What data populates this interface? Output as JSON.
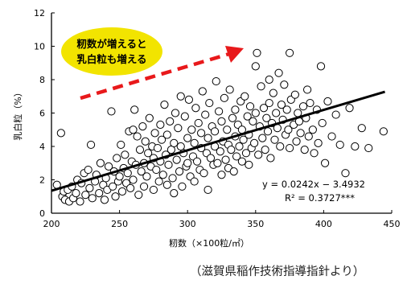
{
  "chart_data": {
    "type": "scatter",
    "title": "",
    "xlabel": "籾数（×100粒/㎡）",
    "ylabel": "乳白粒（%）",
    "xlim": [
      200,
      450
    ],
    "ylim": [
      0,
      12
    ],
    "xticks": [
      200,
      250,
      300,
      350,
      400,
      450
    ],
    "yticks": [
      0,
      2,
      4,
      6,
      8,
      10,
      12
    ],
    "grid": false,
    "legend": "none",
    "annotation": {
      "lines": [
        "籾数が増えると",
        "乳白粒も増える"
      ],
      "fill_color": "#f2e400",
      "arrow_color": "#e8191b"
    },
    "trendline": {
      "slope": 0.0242,
      "intercept": -3.4932,
      "x_range": [
        200,
        445
      ],
      "equation_text": "y = 0.0242x − 3.4932",
      "r2_text": "R² = 0.3727***"
    },
    "series": [
      {
        "points": [
          [
            204,
            1.7
          ],
          [
            207,
            4.8
          ],
          [
            208,
            1.0
          ],
          [
            209,
            1.3
          ],
          [
            210,
            0.8
          ],
          [
            212,
            1.4
          ],
          [
            213,
            0.7
          ],
          [
            215,
            1.6
          ],
          [
            216,
            0.9
          ],
          [
            218,
            1.2
          ],
          [
            219,
            2.0
          ],
          [
            221,
            0.7
          ],
          [
            222,
            1.8
          ],
          [
            224,
            2.4
          ],
          [
            225,
            1.1
          ],
          [
            227,
            2.6
          ],
          [
            228,
            1.5
          ],
          [
            229,
            4.1
          ],
          [
            230,
            0.9
          ],
          [
            232,
            1.9
          ],
          [
            233,
            2.3
          ],
          [
            235,
            1.2
          ],
          [
            236,
            3.0
          ],
          [
            238,
            1.7
          ],
          [
            239,
            0.8
          ],
          [
            240,
            2.1
          ],
          [
            241,
            1.4
          ],
          [
            242,
            2.8
          ],
          [
            244,
            6.1
          ],
          [
            245,
            1.6
          ],
          [
            246,
            2.5
          ],
          [
            247,
            1.0
          ],
          [
            248,
            3.3
          ],
          [
            249,
            1.9
          ],
          [
            250,
            2.2
          ],
          [
            251,
            4.1
          ],
          [
            252,
            1.3
          ],
          [
            253,
            2.7
          ],
          [
            254,
            3.5
          ],
          [
            255,
            1.8
          ],
          [
            256,
            2.4
          ],
          [
            257,
            4.9
          ],
          [
            258,
            1.5
          ],
          [
            259,
            3.1
          ],
          [
            260,
            5.0
          ],
          [
            260,
            2.0
          ],
          [
            261,
            6.2
          ],
          [
            262,
            2.9
          ],
          [
            263,
            4.6
          ],
          [
            264,
            1.1
          ],
          [
            265,
            3.8
          ],
          [
            266,
            2.5
          ],
          [
            267,
            5.2
          ],
          [
            268,
            3.0
          ],
          [
            268,
            1.6
          ],
          [
            269,
            4.3
          ],
          [
            270,
            2.2
          ],
          [
            271,
            3.6
          ],
          [
            272,
            5.7
          ],
          [
            273,
            2.8
          ],
          [
            274,
            4.0
          ],
          [
            275,
            1.4
          ],
          [
            275,
            3.3
          ],
          [
            276,
            4.8
          ],
          [
            277,
            2.6
          ],
          [
            278,
            3.9
          ],
          [
            279,
            1.9
          ],
          [
            280,
            5.3
          ],
          [
            280,
            3.1
          ],
          [
            281,
            4.4
          ],
          [
            282,
            2.3
          ],
          [
            283,
            6.5
          ],
          [
            284,
            3.5
          ],
          [
            285,
            1.7
          ],
          [
            285,
            4.7
          ],
          [
            286,
            2.9
          ],
          [
            287,
            5.5
          ],
          [
            288,
            3.8
          ],
          [
            289,
            2.1
          ],
          [
            290,
            4.2
          ],
          [
            290,
            1.2
          ],
          [
            291,
            6.0
          ],
          [
            292,
            3.2
          ],
          [
            293,
            5.1
          ],
          [
            294,
            2.5
          ],
          [
            295,
            7.0
          ],
          [
            295,
            4.0
          ],
          [
            296,
            1.6
          ],
          [
            297,
            3.6
          ],
          [
            298,
            5.8
          ],
          [
            299,
            2.8
          ],
          [
            300,
            4.5
          ],
          [
            300,
            3.0
          ],
          [
            301,
            6.8
          ],
          [
            302,
            2.2
          ],
          [
            303,
            5.0
          ],
          [
            304,
            3.4
          ],
          [
            305,
            4.2
          ],
          [
            305,
            1.9
          ],
          [
            306,
            6.3
          ],
          [
            307,
            3.1
          ],
          [
            308,
            5.4
          ],
          [
            309,
            2.6
          ],
          [
            310,
            4.8
          ],
          [
            310,
            3.9
          ],
          [
            311,
            7.3
          ],
          [
            312,
            2.4
          ],
          [
            313,
            5.9
          ],
          [
            314,
            3.6
          ],
          [
            315,
            4.5
          ],
          [
            315,
            1.4
          ],
          [
            316,
            6.6
          ],
          [
            317,
            3.3
          ],
          [
            318,
            5.2
          ],
          [
            319,
            2.9
          ],
          [
            320,
            4.9
          ],
          [
            320,
            4.0
          ],
          [
            321,
            7.9
          ],
          [
            322,
            3.0
          ],
          [
            323,
            6.1
          ],
          [
            324,
            3.7
          ],
          [
            325,
            5.5
          ],
          [
            325,
            2.3
          ],
          [
            326,
            4.3
          ],
          [
            327,
            6.9
          ],
          [
            328,
            3.2
          ],
          [
            329,
            5.0
          ],
          [
            330,
            4.1
          ],
          [
            330,
            2.7
          ],
          [
            331,
            7.4
          ],
          [
            332,
            3.8
          ],
          [
            333,
            5.7
          ],
          [
            334,
            2.5
          ],
          [
            335,
            4.6
          ],
          [
            335,
            6.2
          ],
          [
            336,
            3.4
          ],
          [
            337,
            5.3
          ],
          [
            338,
            4.0
          ],
          [
            339,
            6.7
          ],
          [
            340,
            3.1
          ],
          [
            340,
            5.0
          ],
          [
            341,
            4.4
          ],
          [
            342,
            7.0
          ],
          [
            343,
            3.6
          ],
          [
            344,
            5.8
          ],
          [
            345,
            4.7
          ],
          [
            345,
            2.9
          ],
          [
            346,
            6.4
          ],
          [
            347,
            3.9
          ],
          [
            348,
            5.5
          ],
          [
            349,
            4.2
          ],
          [
            350,
            8.8
          ],
          [
            350,
            6.0
          ],
          [
            351,
            9.6
          ],
          [
            352,
            3.5
          ],
          [
            353,
            5.2
          ],
          [
            354,
            7.6
          ],
          [
            355,
            4.5
          ],
          [
            356,
            6.3
          ],
          [
            357,
            3.8
          ],
          [
            358,
            5.7
          ],
          [
            359,
            4.9
          ],
          [
            360,
            8.0
          ],
          [
            360,
            6.6
          ],
          [
            361,
            3.3
          ],
          [
            362,
            5.4
          ],
          [
            363,
            7.2
          ],
          [
            364,
            4.4
          ],
          [
            365,
            6.0
          ],
          [
            366,
            5.1
          ],
          [
            367,
            8.4
          ],
          [
            368,
            4.0
          ],
          [
            369,
            6.5
          ],
          [
            370,
            5.6
          ],
          [
            371,
            7.7
          ],
          [
            372,
            4.7
          ],
          [
            373,
            6.2
          ],
          [
            374,
            5.0
          ],
          [
            375,
            9.6
          ],
          [
            375,
            3.9
          ],
          [
            376,
            6.8
          ],
          [
            378,
            5.3
          ],
          [
            379,
            7.1
          ],
          [
            380,
            4.3
          ],
          [
            381,
            6.0
          ],
          [
            382,
            5.5
          ],
          [
            383,
            4.8
          ],
          [
            385,
            6.4
          ],
          [
            386,
            3.8
          ],
          [
            387,
            5.7
          ],
          [
            388,
            7.4
          ],
          [
            389,
            4.6
          ],
          [
            390,
            6.6
          ],
          [
            392,
            5.0
          ],
          [
            393,
            3.6
          ],
          [
            395,
            6.2
          ],
          [
            396,
            4.2
          ],
          [
            398,
            8.8
          ],
          [
            399,
            5.4
          ],
          [
            401,
            3.0
          ],
          [
            403,
            6.7
          ],
          [
            406,
            4.6
          ],
          [
            409,
            5.9
          ],
          [
            412,
            4.1
          ],
          [
            416,
            2.4
          ],
          [
            419,
            6.3
          ],
          [
            423,
            4.0
          ],
          [
            428,
            5.1
          ],
          [
            433,
            3.9
          ],
          [
            444,
            4.9
          ]
        ]
      }
    ]
  },
  "source_note": "（滋賀県稲作技術指導指針より）"
}
